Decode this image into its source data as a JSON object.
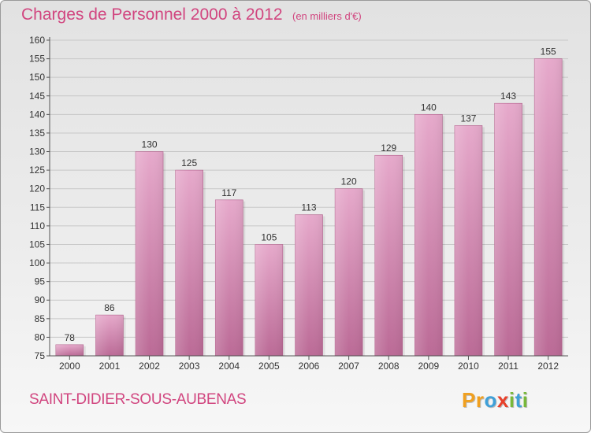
{
  "chart_data": {
    "type": "bar",
    "title": "Charges de Personnel 2000 à 2012",
    "subtitle": "(en milliers d'€)",
    "xlabel": "",
    "ylabel": "",
    "categories": [
      "2000",
      "2001",
      "2002",
      "2003",
      "2004",
      "2005",
      "2006",
      "2007",
      "2008",
      "2009",
      "2010",
      "2011",
      "2012"
    ],
    "values": [
      78,
      86,
      130,
      125,
      117,
      105,
      113,
      120,
      129,
      140,
      137,
      143,
      155
    ],
    "ylim": [
      75,
      160
    ],
    "yticks": [
      75,
      80,
      85,
      90,
      95,
      100,
      105,
      110,
      115,
      120,
      125,
      130,
      135,
      140,
      145,
      150,
      155,
      160
    ],
    "grid": true,
    "bar_color": "#c9709f"
  },
  "footer": {
    "commune": "SAINT-DIDIER-SOUS-AUBENAS",
    "logo_letters": [
      "P",
      "r",
      "o",
      "x",
      "i",
      "t",
      "i"
    ],
    "logo_colors": [
      "#f0a020",
      "#f0a020",
      "#3fa0d8",
      "#e8402a",
      "#78b83a",
      "#3fa0d8",
      "#78b83a"
    ]
  },
  "colors": {
    "accent": "#d1457f"
  }
}
